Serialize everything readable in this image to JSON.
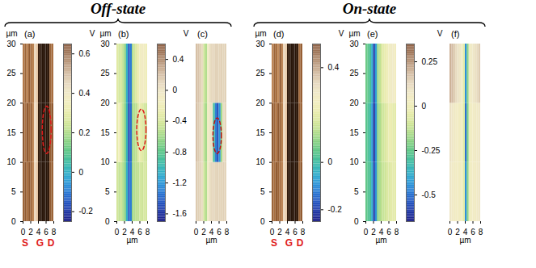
{
  "chart_data": [
    {
      "type": "heatmap",
      "title": "(a)",
      "group": "Off-state",
      "y_label": "µm",
      "xlim": [
        0,
        8
      ],
      "xticks": [
        0,
        2,
        4,
        6,
        8
      ],
      "ylim": [
        0,
        30
      ],
      "yticks": [
        0,
        5,
        10,
        15,
        20,
        25,
        30
      ],
      "value_range": [
        0,
        1
      ],
      "x_edges": [
        0,
        0.5,
        1,
        1.5,
        2,
        2.5,
        3,
        3.5,
        4,
        4.5,
        5,
        5.5,
        6,
        6.5,
        7,
        7.5,
        8
      ],
      "y_edges": [
        0,
        10,
        20,
        30
      ],
      "cells": [
        [
          0.55,
          0.5,
          0.62,
          0.5,
          0.55,
          0.7,
          0.95,
          0.9,
          0.1,
          0.05,
          0.05,
          0.06,
          0.05,
          0.08,
          0.5,
          0.55
        ],
        [
          0.5,
          0.62,
          0.5,
          0.58,
          0.52,
          0.72,
          0.97,
          0.92,
          0.1,
          0.05,
          0.04,
          0.05,
          0.06,
          0.07,
          0.52,
          0.5
        ],
        [
          0.65,
          0.55,
          0.7,
          0.5,
          0.6,
          0.68,
          0.95,
          0.9,
          0.12,
          0.06,
          0.05,
          0.05,
          0.05,
          0.08,
          0.55,
          0.6
        ]
      ],
      "highlight": {
        "x": [
          5.0,
          7.3
        ],
        "y": [
          11.5,
          19.5
        ],
        "color": "#e01b1b",
        "line_style": "dashed"
      },
      "annotations": [
        {
          "text": "S",
          "x": 0.5,
          "color": "#e01b1b"
        },
        {
          "text": "G",
          "x": 4.4,
          "color": "#e01b1b"
        },
        {
          "text": "D",
          "x": 7.3,
          "color": "#e01b1b"
        }
      ]
    },
    {
      "type": "heatmap",
      "title": "(b)",
      "group": "Off-state",
      "y_label": "µm",
      "x_label": "µm",
      "xlim": [
        0,
        8
      ],
      "xticks": [
        0,
        2,
        4,
        6,
        8
      ],
      "ylim": [
        0,
        30
      ],
      "yticks": [
        0,
        5,
        10,
        15,
        20,
        25,
        30
      ],
      "colorbar": {
        "label": "V",
        "range": [
          -0.25,
          0.65
        ],
        "ticks": [
          -0.2,
          0,
          0.2,
          0.4,
          0.6
        ]
      },
      "x_edges": [
        0,
        0.5,
        1,
        1.5,
        2,
        2.5,
        3,
        3.5,
        4,
        4.5,
        5,
        5.5,
        6,
        6.5,
        7,
        7.5,
        8
      ],
      "y_edges": [
        0,
        10,
        20,
        30
      ],
      "cells": [
        [
          0.25,
          0.22,
          0.24,
          0.2,
          0.15,
          0.0,
          -0.15,
          -0.1,
          0.18,
          0.2,
          0.22,
          0.22,
          0.25,
          0.24,
          0.26,
          0.25
        ],
        [
          0.3,
          0.35,
          0.28,
          0.22,
          0.15,
          0.02,
          -0.18,
          -0.12,
          0.18,
          0.2,
          0.22,
          0.28,
          0.3,
          0.28,
          0.25,
          0.24
        ],
        [
          0.28,
          0.25,
          0.26,
          0.22,
          0.16,
          0.0,
          -0.16,
          -0.1,
          0.2,
          0.24,
          0.28,
          0.32,
          0.36,
          0.38,
          0.36,
          0.34
        ]
      ],
      "highlight": {
        "x": [
          5.2,
          7.6
        ],
        "y": [
          12,
          19
        ],
        "color": "#e01b1b",
        "line_style": "dashed"
      }
    },
    {
      "type": "heatmap",
      "title": "(c)",
      "group": "Off-state",
      "x_label": "µm",
      "tick_labels": "x",
      "xlim": [
        0,
        8
      ],
      "xticks": [
        0,
        2,
        4,
        6,
        8
      ],
      "ylim": [
        0,
        30
      ],
      "colorbar": {
        "label": "V",
        "range": [
          -1.7,
          0.6
        ],
        "ticks": [
          -1.6,
          -1.2,
          -0.8,
          -0.4,
          0,
          0.4
        ]
      },
      "x_edges": [
        0,
        0.5,
        1,
        1.5,
        2,
        2.5,
        3,
        3.5,
        4,
        4.5,
        5,
        5.5,
        6,
        6.5,
        7,
        7.5,
        8
      ],
      "y_edges": [
        0,
        10,
        20,
        30
      ],
      "cells": [
        [
          0.15,
          0.12,
          0.1,
          0.05,
          -0.45,
          -0.55,
          -0.1,
          0.05,
          0.08,
          0.1,
          0.1,
          0.12,
          0.1,
          0.1,
          0.12,
          0.1
        ],
        [
          0.2,
          0.15,
          0.1,
          0.05,
          -0.5,
          -0.6,
          -0.15,
          0.0,
          0.0,
          -0.9,
          -1.3,
          -1.5,
          -1.2,
          -0.6,
          0.05,
          0.1
        ],
        [
          0.2,
          0.18,
          0.12,
          0.06,
          -0.45,
          -0.55,
          -0.1,
          0.05,
          0.08,
          0.1,
          0.12,
          0.12,
          0.1,
          0.12,
          0.1,
          0.12
        ]
      ],
      "highlight": {
        "x": [
          4.4,
          6.6
        ],
        "y": [
          11.5,
          17.5
        ],
        "color": "#c01010",
        "line_style": "dashed"
      }
    },
    {
      "type": "heatmap",
      "title": "(d)",
      "group": "On-state",
      "y_label": "µm",
      "xlim": [
        0,
        8
      ],
      "xticks": [
        0,
        2,
        4,
        6,
        8
      ],
      "ylim": [
        0,
        30
      ],
      "yticks": [
        0,
        5,
        10,
        15,
        20,
        25,
        30
      ],
      "value_range": [
        0,
        1
      ],
      "x_edges": [
        0,
        0.5,
        1,
        1.5,
        2,
        2.5,
        3,
        3.5,
        4,
        4.5,
        5,
        5.5,
        6,
        6.5,
        7,
        7.5,
        8
      ],
      "y_edges": [
        0,
        10,
        20,
        30
      ],
      "cells": [
        [
          0.55,
          0.6,
          0.5,
          0.55,
          0.6,
          0.7,
          0.95,
          0.92,
          0.1,
          0.05,
          0.05,
          0.06,
          0.06,
          0.1,
          0.55,
          0.5
        ],
        [
          0.5,
          0.55,
          0.65,
          0.5,
          0.55,
          0.68,
          0.96,
          0.9,
          0.08,
          0.05,
          0.04,
          0.05,
          0.05,
          0.08,
          0.5,
          0.55
        ],
        [
          0.7,
          0.55,
          0.6,
          0.72,
          0.5,
          0.7,
          0.95,
          0.92,
          0.1,
          0.06,
          0.05,
          0.05,
          0.06,
          0.1,
          0.6,
          0.52
        ]
      ],
      "annotations": [
        {
          "text": "S",
          "x": 0.5,
          "color": "#e01b1b"
        },
        {
          "text": "G",
          "x": 4.4,
          "color": "#e01b1b"
        },
        {
          "text": "D",
          "x": 7.3,
          "color": "#e01b1b"
        }
      ]
    },
    {
      "type": "heatmap",
      "title": "(e)",
      "group": "On-state",
      "y_label": "µm",
      "x_label": "µm",
      "xlim": [
        0,
        8
      ],
      "xticks": [
        0,
        2,
        4,
        6,
        8
      ],
      "ylim": [
        0,
        30
      ],
      "yticks": [
        0,
        5,
        10,
        15,
        20,
        25,
        30
      ],
      "colorbar": {
        "label": "V",
        "range": [
          -0.25,
          0.5
        ],
        "ticks": [
          -0.2,
          0,
          0.4
        ]
      },
      "x_edges": [
        0,
        0.5,
        1,
        1.5,
        2,
        2.5,
        3,
        3.5,
        4,
        4.5,
        5,
        5.5,
        6,
        6.5,
        7,
        7.5,
        8
      ],
      "y_edges": [
        0,
        10,
        20,
        30
      ],
      "cells": [
        [
          0.05,
          0.03,
          0.02,
          -0.05,
          -0.2,
          -0.1,
          0.08,
          0.12,
          0.14,
          0.15,
          0.16,
          0.18,
          0.18,
          0.2,
          0.2,
          0.2
        ],
        [
          0.04,
          0.02,
          0.0,
          -0.08,
          -0.22,
          -0.1,
          0.08,
          0.12,
          0.15,
          0.16,
          0.18,
          0.2,
          0.22,
          0.22,
          0.2,
          0.2
        ],
        [
          0.06,
          0.04,
          0.02,
          -0.05,
          -0.2,
          -0.08,
          0.1,
          0.14,
          0.18,
          0.2,
          0.22,
          0.24,
          0.26,
          0.28,
          0.28,
          0.26
        ]
      ]
    },
    {
      "type": "heatmap",
      "title": "(f)",
      "group": "On-state",
      "x_label": "µm",
      "tick_labels": "x",
      "xlim": [
        0,
        8
      ],
      "xticks": [
        0,
        2,
        4,
        6,
        8
      ],
      "ylim": [
        0,
        30
      ],
      "colorbar": {
        "label": "V",
        "range": [
          -0.65,
          0.35
        ],
        "ticks": [
          -0.5,
          -0.25,
          0,
          0.25
        ]
      },
      "x_edges": [
        0,
        0.5,
        1,
        1.5,
        2,
        2.5,
        3,
        3.5,
        4,
        4.5,
        5,
        5.5,
        6,
        6.5,
        7,
        7.5,
        8
      ],
      "y_edges": [
        0,
        10,
        20,
        30
      ],
      "cells": [
        [
          0.08,
          0.06,
          0.05,
          0.04,
          0.04,
          0.03,
          0.02,
          -0.05,
          -0.45,
          -0.2,
          0.02,
          0.04,
          0.05,
          0.05,
          0.06,
          0.08
        ],
        [
          0.1,
          0.08,
          0.06,
          0.05,
          0.04,
          0.03,
          0.02,
          -0.06,
          -0.5,
          -0.22,
          0.02,
          0.04,
          0.05,
          0.06,
          0.06,
          0.08
        ],
        [
          0.2,
          0.18,
          0.15,
          0.12,
          0.1,
          0.08,
          0.05,
          -0.05,
          -0.45,
          -0.2,
          0.04,
          0.06,
          0.08,
          0.1,
          0.12,
          0.15
        ]
      ]
    }
  ]
}
